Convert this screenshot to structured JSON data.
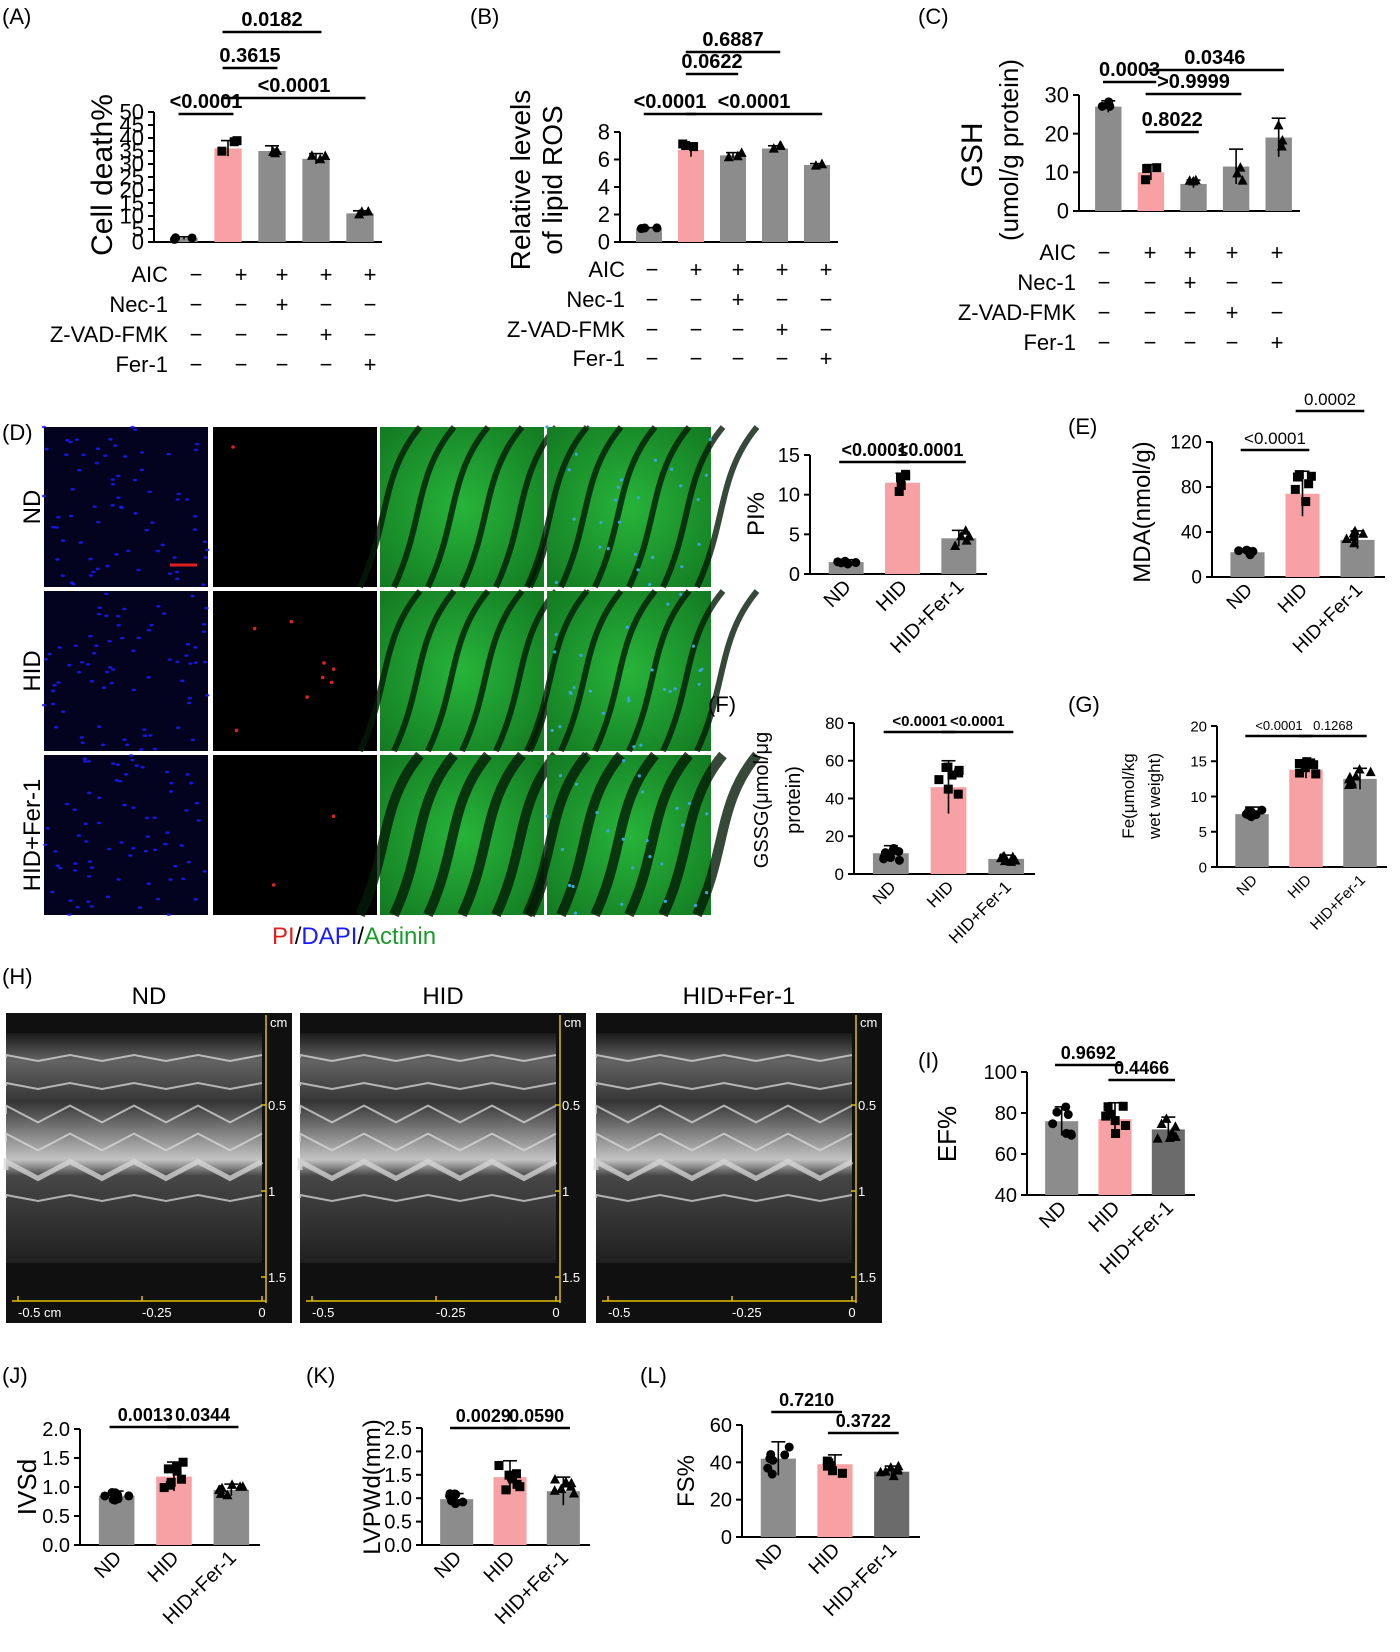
{
  "colors": {
    "bar_gray": "#8c8c8c",
    "bar_pink": "#f7a1a4",
    "bar_darkgray": "#6b6b6b",
    "pi_red": "#e02020",
    "dapi_blue": "#1a1aff",
    "actinin_green": "#1a9a2a"
  },
  "panels": {
    "A": {
      "letter": "(A)",
      "ylabel": "Cell death%",
      "ticks": [
        "0",
        "5",
        "10",
        "15",
        "20",
        "25",
        "30",
        "35",
        "40",
        "45",
        "50"
      ]
    },
    "B": {
      "letter": "(B)",
      "ylabel1": "Relative levels",
      "ylabel2": "of lipid ROS",
      "ticks": [
        "0",
        "2",
        "4",
        "6",
        "8"
      ]
    },
    "C": {
      "letter": "(C)",
      "ylabel1": "GSH",
      "ylabel2": "(umol/g protein)",
      "ticks": [
        "0",
        "10",
        "20",
        "30"
      ]
    },
    "D": {
      "letter": "(D)",
      "rows": [
        "ND",
        "HID",
        "HID+Fer-1"
      ],
      "legend": [
        "PI",
        "/",
        "DAPI",
        "/",
        "Actinin"
      ]
    },
    "PI": {
      "ylabel": "PI%",
      "ticks": [
        "0",
        "5",
        "10",
        "15"
      ]
    },
    "E": {
      "letter": "(E)",
      "ylabel": "MDA(nmol/g)",
      "ticks": [
        "0",
        "40",
        "80",
        "120"
      ]
    },
    "F": {
      "letter": "(F)",
      "ylabel1": "GSSG(μmol/μg",
      "ylabel2": "protein)",
      "ticks": [
        "0",
        "20",
        "40",
        "60",
        "80"
      ]
    },
    "G": {
      "letter": "(G)",
      "ylabel1": "Fe(μmol/kg",
      "ylabel2": "wet weight)",
      "ticks": [
        "0",
        "5",
        "10",
        "15",
        "20"
      ]
    },
    "H": {
      "letter": "(H)",
      "titles": [
        "ND",
        "HID",
        "HID+Fer-1"
      ],
      "cm": "cm",
      "xticks_first": [
        "-0.5  cm",
        "-0.25",
        "0"
      ],
      "xticks": [
        "-0.5",
        "-0.25",
        "0"
      ],
      "depth_ticks": [
        "0.5",
        "1",
        "1.5"
      ]
    },
    "I": {
      "letter": "(I)",
      "ylabel": "EF%",
      "ticks": [
        "40",
        "60",
        "80",
        "100"
      ]
    },
    "J": {
      "letter": "(J)",
      "ylabel": "IVSd",
      "ticks": [
        "0.0",
        "0.5",
        "1.0",
        "1.5",
        "2.0"
      ]
    },
    "K": {
      "letter": "(K)",
      "ylabel": "LVPWd(mm)",
      "ticks": [
        "0.0",
        "0.5",
        "1.0",
        "1.5",
        "2.0",
        "2.5"
      ]
    },
    "L": {
      "letter": "(L)",
      "ylabel": "FS%",
      "ticks": [
        "0",
        "20",
        "40",
        "60"
      ]
    }
  },
  "conditions": {
    "labels": [
      "AIC",
      "Nec-1",
      "Z-VAD-FMK",
      "Fer-1"
    ],
    "signs": [
      [
        "−",
        "+",
        "+",
        "+",
        "+"
      ],
      [
        "−",
        "−",
        "+",
        "−",
        "−"
      ],
      [
        "−",
        "−",
        "−",
        "+",
        "−"
      ],
      [
        "−",
        "−",
        "−",
        "−",
        "+"
      ]
    ]
  },
  "chart_data": [
    {
      "id": "A",
      "type": "bar",
      "ylabel": "Cell death%",
      "ylim": [
        0,
        50
      ],
      "categories": [
        "AIC−",
        "AIC",
        "AIC+Nec-1",
        "AIC+Z-VAD-FMK",
        "AIC+Fer-1"
      ],
      "values": [
        1.5,
        36,
        35,
        32,
        11
      ],
      "errors": [
        0.5,
        3,
        2,
        2,
        1
      ],
      "comparisons": [
        {
          "groups": [
            "AIC−",
            "AIC"
          ],
          "p": "<0.0001"
        },
        {
          "groups": [
            "AIC",
            "AIC+Fer-1"
          ],
          "p": "<0.0001"
        },
        {
          "groups": [
            "AIC",
            "AIC+Nec-1"
          ],
          "p": "0.3615"
        },
        {
          "groups": [
            "AIC",
            "AIC+Z-VAD-FMK"
          ],
          "p": "0.0182"
        }
      ]
    },
    {
      "id": "B",
      "type": "bar",
      "ylabel": "Relative levels of lipid ROS",
      "ylim": [
        0,
        8
      ],
      "categories": [
        "AIC−",
        "AIC",
        "AIC+Nec-1",
        "AIC+Z-VAD-FMK",
        "AIC+Fer-1"
      ],
      "values": [
        1.0,
        6.7,
        6.3,
        6.8,
        5.6
      ],
      "errors": [
        0.05,
        0.5,
        0.2,
        0.2,
        0.1
      ],
      "comparisons": [
        {
          "groups": [
            "AIC−",
            "AIC"
          ],
          "p": "<0.0001"
        },
        {
          "groups": [
            "AIC",
            "AIC+Fer-1"
          ],
          "p": "<0.0001"
        },
        {
          "groups": [
            "AIC",
            "AIC+Nec-1"
          ],
          "p": "0.0622"
        },
        {
          "groups": [
            "AIC",
            "AIC+Z-VAD-FMK"
          ],
          "p": "0.6887"
        }
      ]
    },
    {
      "id": "C",
      "type": "bar",
      "ylabel": "GSH (umol/g protein)",
      "ylim": [
        0,
        30
      ],
      "categories": [
        "AIC−",
        "AIC",
        "AIC+Nec-1",
        "AIC+Z-VAD-FMK",
        "AIC+Fer-1"
      ],
      "values": [
        27,
        10,
        7,
        11.5,
        19
      ],
      "errors": [
        1.5,
        2,
        1,
        4.5,
        5
      ],
      "comparisons": [
        {
          "groups": [
            "AIC−",
            "AIC"
          ],
          "p": "0.0003"
        },
        {
          "groups": [
            "AIC",
            "AIC+Nec-1"
          ],
          "p": "0.8022"
        },
        {
          "groups": [
            "AIC",
            "AIC+Z-VAD-FMK"
          ],
          "p": ">0.9999"
        },
        {
          "groups": [
            "AIC",
            "AIC+Fer-1"
          ],
          "p": "0.0346"
        }
      ]
    },
    {
      "id": "PI",
      "type": "bar",
      "ylabel": "PI%",
      "ylim": [
        0,
        15
      ],
      "categories": [
        "ND",
        "HID",
        "HID+Fer-1"
      ],
      "values": [
        1.5,
        11.5,
        4.5
      ],
      "errors": [
        0.3,
        1.2,
        1.0
      ],
      "comparisons": [
        {
          "groups": [
            "ND",
            "HID"
          ],
          "p": "<0.0001"
        },
        {
          "groups": [
            "HID",
            "HID+Fer-1"
          ],
          "p": "<0.0001"
        }
      ]
    },
    {
      "id": "E",
      "type": "bar",
      "ylabel": "MDA(nmol/g)",
      "ylim": [
        0,
        120
      ],
      "categories": [
        "ND",
        "HID",
        "HID+Fer-1"
      ],
      "values": [
        22,
        74,
        33
      ],
      "errors": [
        3,
        20,
        8
      ],
      "comparisons": [
        {
          "groups": [
            "ND",
            "HID"
          ],
          "p": "<0.0001"
        },
        {
          "groups": [
            "HID",
            "HID+Fer-1"
          ],
          "p": "0.0002"
        }
      ]
    },
    {
      "id": "F",
      "type": "bar",
      "ylabel": "GSSG(μmol/μg protein)",
      "ylim": [
        0,
        80
      ],
      "categories": [
        "ND",
        "HID",
        "HID+Fer-1"
      ],
      "values": [
        11,
        46,
        8
      ],
      "errors": [
        4,
        14,
        2
      ],
      "comparisons": [
        {
          "groups": [
            "ND",
            "HID"
          ],
          "p": "<0.0001"
        },
        {
          "groups": [
            "HID",
            "HID+Fer-1"
          ],
          "p": "<0.0001"
        }
      ]
    },
    {
      "id": "G",
      "type": "bar",
      "ylabel": "Fe(μmol/kg wet weight)",
      "ylim": [
        0,
        20
      ],
      "categories": [
        "ND",
        "HID",
        "HID+Fer-1"
      ],
      "values": [
        7.5,
        13.8,
        12.5
      ],
      "errors": [
        1,
        1.2,
        1.5
      ],
      "comparisons": [
        {
          "groups": [
            "ND",
            "HID"
          ],
          "p": "<0.0001"
        },
        {
          "groups": [
            "HID",
            "HID+Fer-1"
          ],
          "p": "0.1268"
        }
      ]
    },
    {
      "id": "I",
      "type": "bar",
      "ylabel": "EF%",
      "ylim": [
        40,
        100
      ],
      "categories": [
        "ND",
        "HID",
        "HID+Fer-1"
      ],
      "values": [
        76,
        77,
        72
      ],
      "errors": [
        7,
        8,
        6
      ],
      "comparisons": [
        {
          "groups": [
            "ND",
            "HID"
          ],
          "p": "0.9692"
        },
        {
          "groups": [
            "HID",
            "HID+Fer-1"
          ],
          "p": "0.4466"
        }
      ]
    },
    {
      "id": "J",
      "type": "bar",
      "ylabel": "IVSd",
      "ylim": [
        0,
        2.0
      ],
      "categories": [
        "ND",
        "HID",
        "HID+Fer-1"
      ],
      "values": [
        0.85,
        1.18,
        0.95
      ],
      "errors": [
        0.08,
        0.25,
        0.1
      ],
      "comparisons": [
        {
          "groups": [
            "ND",
            "HID"
          ],
          "p": "0.0013"
        },
        {
          "groups": [
            "HID",
            "HID+Fer-1"
          ],
          "p": "0.0344"
        }
      ]
    },
    {
      "id": "K",
      "type": "bar",
      "ylabel": "LVPWd(mm)",
      "ylim": [
        0,
        2.5
      ],
      "categories": [
        "ND",
        "HID",
        "HID+Fer-1"
      ],
      "values": [
        0.98,
        1.45,
        1.15
      ],
      "errors": [
        0.12,
        0.35,
        0.3
      ],
      "comparisons": [
        {
          "groups": [
            "ND",
            "HID"
          ],
          "p": "0.0029"
        },
        {
          "groups": [
            "HID",
            "HID+Fer-1"
          ],
          "p": "0.0590"
        }
      ]
    },
    {
      "id": "L",
      "type": "bar",
      "ylabel": "FS%",
      "ylim": [
        0,
        60
      ],
      "categories": [
        "ND",
        "HID",
        "HID+Fer-1"
      ],
      "values": [
        42,
        39,
        35
      ],
      "errors": [
        9,
        5,
        3
      ],
      "comparisons": [
        {
          "groups": [
            "ND",
            "HID"
          ],
          "p": "0.7210"
        },
        {
          "groups": [
            "HID",
            "HID+Fer-1"
          ],
          "p": "0.3722"
        }
      ]
    }
  ]
}
